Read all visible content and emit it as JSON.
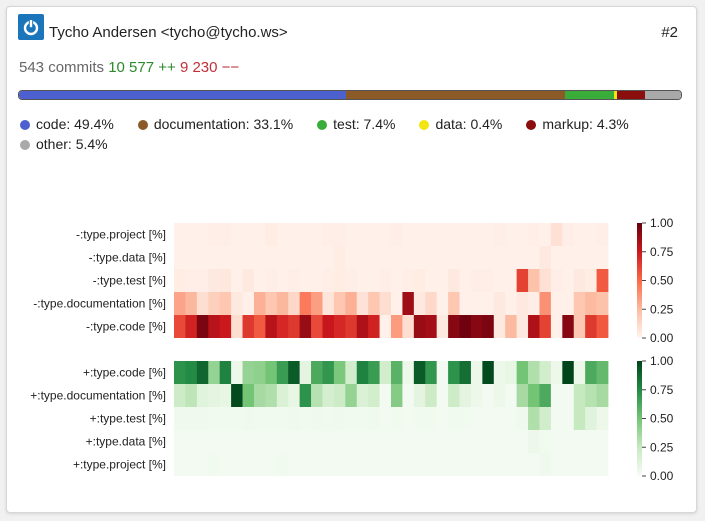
{
  "header": {
    "avatar_icon": "power-icon",
    "author": "Tycho Andersen <tycho@tycho.ws>",
    "rank": "#2"
  },
  "stats": {
    "commits": "543 commits",
    "insertions": "10 577 ++",
    "deletions": "9 230 −−"
  },
  "types": [
    {
      "name": "code",
      "label": "code: 49.4%",
      "share": 49.4,
      "color": "#4c61cf"
    },
    {
      "name": "documentation",
      "label": "documentation: 33.1%",
      "share": 33.1,
      "color": "#8c5a27"
    },
    {
      "name": "test",
      "label": "test: 7.4%",
      "share": 7.4,
      "color": "#3aac3a"
    },
    {
      "name": "data",
      "label": "data: 0.4%",
      "share": 0.4,
      "color": "#f2e511"
    },
    {
      "name": "markup",
      "label": "markup: 4.3%",
      "share": 4.3,
      "color": "#8b0e0e"
    },
    {
      "name": "other",
      "label": "other: 5.4%",
      "share": 5.4,
      "color": "#a9a9a9"
    }
  ],
  "chart_data": [
    {
      "type": "heatmap",
      "title": "",
      "rows": [
        "-:type.project [%]",
        "-:type.data [%]",
        "-:type.test [%]",
        "-:type.documentation [%]",
        "-:type.code [%]"
      ],
      "colorscale": "Reds",
      "colorbar_ticks": [
        "1.00",
        "0.75",
        "0.50",
        "0.25",
        "0.00"
      ],
      "zlim": [
        0,
        1
      ],
      "columns": 38,
      "values": [
        [
          0.02,
          0.02,
          0.02,
          0.03,
          0.03,
          0.02,
          0.02,
          0.02,
          0.04,
          0.02,
          0.02,
          0.02,
          0.02,
          0.03,
          0.03,
          0.02,
          0.02,
          0.02,
          0.02,
          0.03,
          0.02,
          0.02,
          0.02,
          0.02,
          0.02,
          0.02,
          0.02,
          0.02,
          0.03,
          0.02,
          0.02,
          0.03,
          0.02,
          0.09,
          0.03,
          0.02,
          0.02,
          0.03
        ],
        [
          0.02,
          0.02,
          0.02,
          0.02,
          0.02,
          0.02,
          0.02,
          0.02,
          0.02,
          0.02,
          0.02,
          0.02,
          0.02,
          0.02,
          0.04,
          0.02,
          0.02,
          0.02,
          0.02,
          0.02,
          0.02,
          0.02,
          0.02,
          0.02,
          0.02,
          0.02,
          0.02,
          0.02,
          0.02,
          0.02,
          0.02,
          0.02,
          0.05,
          0.02,
          0.02,
          0.02,
          0.02,
          0.02
        ],
        [
          0.04,
          0.03,
          0.03,
          0.05,
          0.06,
          0.02,
          0.05,
          0.02,
          0.03,
          0.02,
          0.03,
          0.02,
          0.02,
          0.03,
          0.04,
          0.03,
          0.02,
          0.02,
          0.03,
          0.02,
          0.03,
          0.04,
          0.02,
          0.02,
          0.05,
          0.02,
          0.03,
          0.03,
          0.02,
          0.02,
          0.62,
          0.22,
          0.09,
          0.03,
          0.02,
          0.05,
          0.04,
          0.55
        ],
        [
          0.32,
          0.26,
          0.1,
          0.16,
          0.2,
          0.05,
          0.02,
          0.28,
          0.2,
          0.26,
          0.13,
          0.45,
          0.34,
          0.07,
          0.2,
          0.28,
          0.08,
          0.2,
          0.1,
          0.02,
          0.86,
          0.05,
          0.12,
          0.02,
          0.2,
          0.02,
          0.02,
          0.02,
          0.05,
          0.02,
          0.05,
          0.03,
          0.38,
          0.02,
          0.02,
          0.2,
          0.25,
          0.22
        ],
        [
          0.6,
          0.72,
          0.95,
          0.8,
          0.75,
          0.1,
          0.65,
          0.55,
          0.8,
          0.7,
          0.65,
          0.88,
          0.6,
          0.76,
          0.7,
          0.65,
          0.82,
          0.72,
          0.02,
          0.35,
          0.1,
          0.88,
          0.85,
          0.05,
          0.92,
          0.98,
          0.92,
          0.95,
          0.05,
          0.25,
          0.05,
          0.82,
          0.62,
          0.02,
          0.92,
          0.2,
          0.65,
          0.55
        ]
      ]
    },
    {
      "type": "heatmap",
      "title": "",
      "rows": [
        "+:type.code [%]",
        "+:type.documentation [%]",
        "+:type.test [%]",
        "+:type.data [%]",
        "+:type.project [%]"
      ],
      "colorscale": "Greens",
      "colorbar_ticks": [
        "1.00",
        "0.75",
        "0.50",
        "0.25",
        "0.00"
      ],
      "zlim": [
        0,
        1
      ],
      "columns": 38,
      "values": [
        [
          0.72,
          0.75,
          0.88,
          0.4,
          0.78,
          0.05,
          0.4,
          0.42,
          0.5,
          0.68,
          0.92,
          0.1,
          0.62,
          0.7,
          0.48,
          0.2,
          0.78,
          0.68,
          0.2,
          0.58,
          0.05,
          0.92,
          0.7,
          0.02,
          0.72,
          0.85,
          0.05,
          0.98,
          0.05,
          0.08,
          0.5,
          0.32,
          0.2,
          0.05,
          1.0,
          0.05,
          0.62,
          0.55
        ],
        [
          0.22,
          0.28,
          0.12,
          0.1,
          0.08,
          0.98,
          0.5,
          0.35,
          0.32,
          0.15,
          0.08,
          0.72,
          0.3,
          0.18,
          0.22,
          0.4,
          0.15,
          0.2,
          0.02,
          0.45,
          0.02,
          0.1,
          0.22,
          0.02,
          0.22,
          0.1,
          0.05,
          0.02,
          0.05,
          0.02,
          0.35,
          0.5,
          0.62,
          0.02,
          0.02,
          0.25,
          0.3,
          0.35
        ],
        [
          0.04,
          0.04,
          0.04,
          0.03,
          0.03,
          0.03,
          0.04,
          0.03,
          0.03,
          0.03,
          0.04,
          0.03,
          0.04,
          0.03,
          0.04,
          0.03,
          0.03,
          0.04,
          0.02,
          0.03,
          0.02,
          0.03,
          0.03,
          0.02,
          0.03,
          0.03,
          0.02,
          0.02,
          0.02,
          0.02,
          0.04,
          0.32,
          0.2,
          0.02,
          0.02,
          0.25,
          0.12,
          0.05
        ],
        [
          0.02,
          0.02,
          0.02,
          0.02,
          0.02,
          0.02,
          0.02,
          0.02,
          0.02,
          0.02,
          0.02,
          0.02,
          0.02,
          0.02,
          0.02,
          0.02,
          0.02,
          0.02,
          0.02,
          0.02,
          0.02,
          0.02,
          0.02,
          0.02,
          0.02,
          0.02,
          0.02,
          0.02,
          0.02,
          0.02,
          0.02,
          0.05,
          0.03,
          0.02,
          0.02,
          0.02,
          0.02,
          0.02
        ],
        [
          0.02,
          0.02,
          0.02,
          0.03,
          0.02,
          0.02,
          0.02,
          0.02,
          0.02,
          0.03,
          0.02,
          0.02,
          0.02,
          0.02,
          0.02,
          0.02,
          0.02,
          0.02,
          0.02,
          0.02,
          0.02,
          0.02,
          0.02,
          0.02,
          0.02,
          0.02,
          0.02,
          0.02,
          0.02,
          0.02,
          0.02,
          0.02,
          0.04,
          0.02,
          0.02,
          0.02,
          0.02,
          0.02
        ]
      ]
    }
  ]
}
